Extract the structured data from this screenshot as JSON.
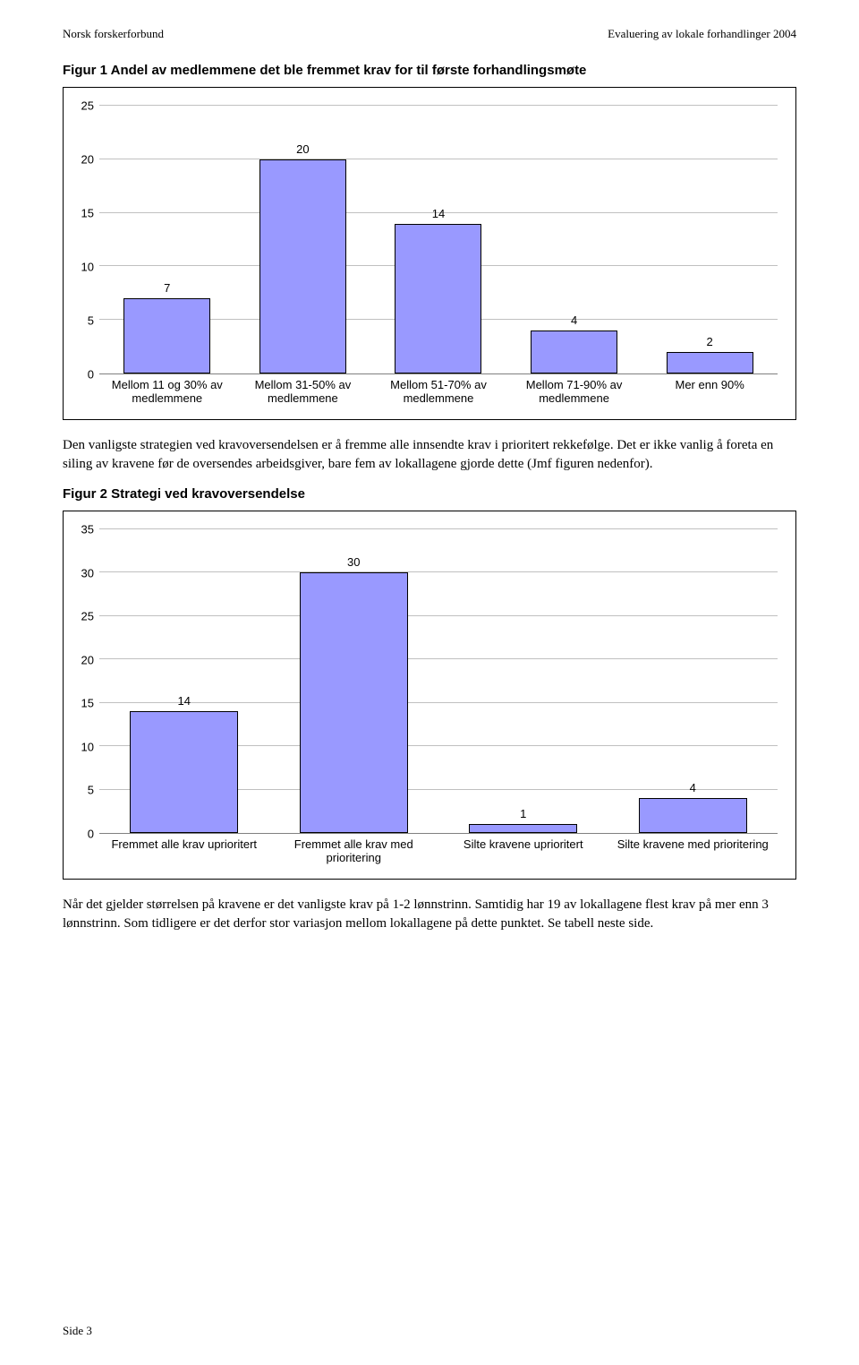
{
  "header": {
    "left": "Norsk forskerforbund",
    "right": "Evaluering av lokale forhandlinger 2004"
  },
  "figure1": {
    "title": "Figur 1 Andel av medlemmene det ble fremmet krav for til første forhandlingsmøte",
    "type": "bar",
    "ylim": [
      0,
      25
    ],
    "ytick_step": 5,
    "yticks": [
      0,
      5,
      10,
      15,
      20,
      25
    ],
    "bar_color": "#9999ff",
    "border_color": "#000000",
    "grid_color": "#c0c0c0",
    "categories": [
      "Mellom 11 og 30% av medlemmene",
      "Mellom 31-50% av medlemmene",
      "Mellom 51-70% av medlemmene",
      "Mellom 71-90% av medlemmene",
      "Mer enn 90%"
    ],
    "values": [
      7,
      20,
      14,
      4,
      2
    ]
  },
  "paragraph1": "Den vanligste strategien ved kravoversendelsen er å fremme alle innsendte krav i prioritert rekkefølge. Det er ikke vanlig å foreta en siling av kravene før de oversendes arbeidsgiver, bare fem av lokallagene gjorde dette (Jmf figuren nedenfor).",
  "figure2": {
    "title": "Figur 2 Strategi ved kravoversendelse",
    "type": "bar",
    "ylim": [
      0,
      35
    ],
    "ytick_step": 5,
    "yticks": [
      0,
      5,
      10,
      15,
      20,
      25,
      30,
      35
    ],
    "bar_color": "#9999ff",
    "border_color": "#000000",
    "grid_color": "#c0c0c0",
    "categories": [
      "Fremmet alle krav uprioritert",
      "Fremmet alle krav med prioritering",
      "Silte kravene  uprioritert",
      "Silte kravene med prioritering"
    ],
    "values": [
      14,
      30,
      1,
      4
    ]
  },
  "paragraph2": "Når det gjelder størrelsen på kravene er det vanligste krav på 1-2 lønnstrinn. Samtidig har 19 av lokallagene flest krav på mer enn 3 lønnstrinn. Som tidligere er det derfor stor variasjon mellom lokallagene på dette punktet. Se tabell neste side.",
  "footer": "Side 3"
}
